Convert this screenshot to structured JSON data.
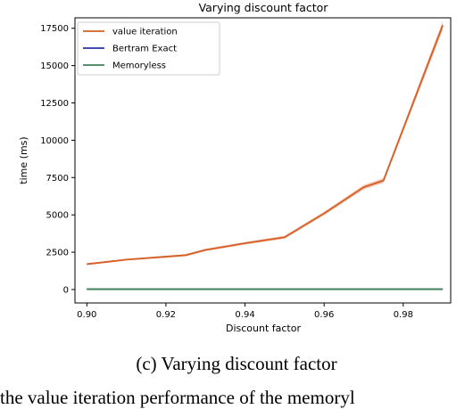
{
  "chart_data": {
    "type": "line",
    "title": "Varying discount factor",
    "xlabel": "Discount factor",
    "ylabel": "time (ms)",
    "xlim": [
      0.897,
      0.992
    ],
    "ylim": [
      -900,
      18200
    ],
    "xticks": [
      0.9,
      0.92,
      0.94,
      0.96,
      0.98
    ],
    "xtick_labels": [
      "0.90",
      "0.92",
      "0.94",
      "0.96",
      "0.98"
    ],
    "yticks": [
      0,
      2500,
      5000,
      7500,
      10000,
      12500,
      15000,
      17500
    ],
    "ytick_labels": [
      "0",
      "2500",
      "5000",
      "7500",
      "10000",
      "12500",
      "15000",
      "17500"
    ],
    "grid": false,
    "legend_position": "top-left",
    "series": [
      {
        "name": "value iteration",
        "color": "#d65f26",
        "band_color": "#f2b9a4",
        "x": [
          0.9,
          0.91,
          0.92,
          0.925,
          0.93,
          0.94,
          0.95,
          0.96,
          0.97,
          0.975,
          0.99
        ],
        "y": [
          1700,
          2000,
          2200,
          2300,
          2650,
          3100,
          3500,
          5100,
          6850,
          7300,
          17700
        ],
        "spread": [
          60,
          60,
          70,
          80,
          80,
          90,
          100,
          120,
          150,
          160,
          300
        ]
      },
      {
        "name": "Bertram Exact",
        "color": "#2a33a8",
        "x": [
          0.9,
          0.99
        ],
        "y": [
          20,
          20
        ]
      },
      {
        "name": "Memoryless",
        "color": "#3f7f5c",
        "x": [
          0.9,
          0.99
        ],
        "y": [
          20,
          20
        ]
      }
    ]
  },
  "caption": "(c) Varying discount factor",
  "bottom_text": "the value iteration performance of the memoryl"
}
